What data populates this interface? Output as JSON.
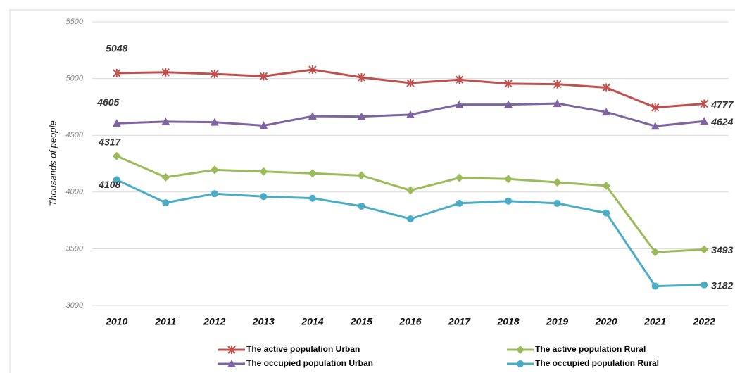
{
  "chart_data": {
    "type": "line",
    "y_label": "Thousands of people",
    "categories": [
      "2010",
      "2011",
      "2012",
      "2013",
      "2014",
      "2015",
      "2016",
      "2017",
      "2018",
      "2019",
      "2020",
      "2021",
      "2022"
    ],
    "series": [
      {
        "name": "The active population Urban",
        "color": "#c0504d",
        "marker": "asterisk",
        "values": [
          5048,
          5055,
          5040,
          5020,
          5078,
          5010,
          4960,
          4990,
          4955,
          4950,
          4920,
          4745,
          4777
        ]
      },
      {
        "name": "The occupied population Urban",
        "color": "#8064a2",
        "marker": "triangle",
        "values": [
          4605,
          4620,
          4615,
          4585,
          4668,
          4665,
          4682,
          4770,
          4770,
          4780,
          4705,
          4580,
          4624
        ]
      },
      {
        "name": "The active population Rural",
        "color": "#9bbb59",
        "marker": "diamond",
        "values": [
          4317,
          4130,
          4195,
          4180,
          4165,
          4145,
          4015,
          4125,
          4115,
          4085,
          4055,
          3470,
          3493
        ]
      },
      {
        "name": "The occupied population Rural",
        "color": "#4bacc6",
        "marker": "circle",
        "values": [
          4108,
          3905,
          3985,
          3960,
          3945,
          3875,
          3763,
          3900,
          3920,
          3900,
          3815,
          3170,
          3182
        ]
      }
    ],
    "ylim": [
      3000,
      5500
    ],
    "yticks": [
      3000,
      3500,
      4000,
      4500,
      5000,
      5500
    ],
    "grid": true
  }
}
